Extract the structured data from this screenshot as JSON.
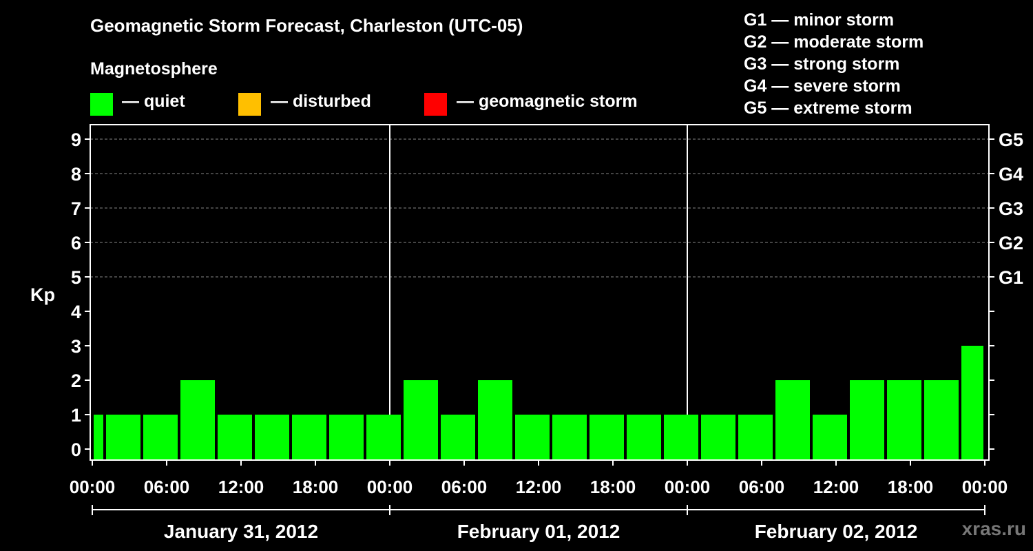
{
  "title": "Geomagnetic Storm Forecast, Charleston (UTC-05)",
  "legend": {
    "heading": "Magnetosphere",
    "items": [
      {
        "label": "— quiet",
        "color": "#00ff00"
      },
      {
        "label": "— disturbed",
        "color": "#ffbf00"
      },
      {
        "label": "— geomagnetic storm",
        "color": "#ff0000"
      }
    ]
  },
  "g_scale": [
    "G1 — minor storm",
    "G2 — moderate storm",
    "G3 — strong storm",
    "G4 — severe storm",
    "G5 — extreme storm"
  ],
  "credit": "xras.ru",
  "chart_data": {
    "type": "bar",
    "ylabel": "Kp",
    "ylim": [
      0,
      9
    ],
    "yticks": [
      0,
      1,
      2,
      3,
      4,
      5,
      6,
      7,
      8,
      9
    ],
    "right_axis_labels": [
      {
        "kp": 5,
        "label": "G1"
      },
      {
        "kp": 6,
        "label": "G2"
      },
      {
        "kp": 7,
        "label": "G3"
      },
      {
        "kp": 8,
        "label": "G4"
      },
      {
        "kp": 9,
        "label": "G5"
      }
    ],
    "grid": "dashed horizontal at Kp 5–9",
    "xlim_hours": [
      0,
      72
    ],
    "xticks": [
      {
        "hour": 0,
        "label": "00:00"
      },
      {
        "hour": 6,
        "label": "06:00"
      },
      {
        "hour": 12,
        "label": "12:00"
      },
      {
        "hour": 18,
        "label": "18:00"
      },
      {
        "hour": 24,
        "label": "00:00"
      },
      {
        "hour": 30,
        "label": "06:00"
      },
      {
        "hour": 36,
        "label": "12:00"
      },
      {
        "hour": 42,
        "label": "18:00"
      },
      {
        "hour": 48,
        "label": "00:00"
      },
      {
        "hour": 54,
        "label": "06:00"
      },
      {
        "hour": 60,
        "label": "12:00"
      },
      {
        "hour": 66,
        "label": "18:00"
      },
      {
        "hour": 72,
        "label": "00:00"
      }
    ],
    "days": [
      {
        "label": "January 31, 2012",
        "start": 0,
        "end": 24
      },
      {
        "label": "February 01, 2012",
        "start": 24,
        "end": 48
      },
      {
        "label": "February 02, 2012",
        "start": 48,
        "end": 72
      }
    ],
    "bar_color": "#00ff00",
    "bars": [
      {
        "start": 0,
        "end": 1,
        "kp": 1
      },
      {
        "start": 1,
        "end": 4,
        "kp": 1
      },
      {
        "start": 4,
        "end": 7,
        "kp": 1
      },
      {
        "start": 7,
        "end": 10,
        "kp": 2
      },
      {
        "start": 10,
        "end": 13,
        "kp": 1
      },
      {
        "start": 13,
        "end": 16,
        "kp": 1
      },
      {
        "start": 16,
        "end": 19,
        "kp": 1
      },
      {
        "start": 19,
        "end": 22,
        "kp": 1
      },
      {
        "start": 22,
        "end": 25,
        "kp": 1
      },
      {
        "start": 25,
        "end": 28,
        "kp": 2
      },
      {
        "start": 28,
        "end": 31,
        "kp": 1
      },
      {
        "start": 31,
        "end": 34,
        "kp": 2
      },
      {
        "start": 34,
        "end": 37,
        "kp": 1
      },
      {
        "start": 37,
        "end": 40,
        "kp": 1
      },
      {
        "start": 40,
        "end": 43,
        "kp": 1
      },
      {
        "start": 43,
        "end": 46,
        "kp": 1
      },
      {
        "start": 46,
        "end": 49,
        "kp": 1
      },
      {
        "start": 49,
        "end": 52,
        "kp": 1
      },
      {
        "start": 52,
        "end": 55,
        "kp": 1
      },
      {
        "start": 55,
        "end": 58,
        "kp": 2
      },
      {
        "start": 58,
        "end": 61,
        "kp": 1
      },
      {
        "start": 61,
        "end": 64,
        "kp": 2
      },
      {
        "start": 64,
        "end": 67,
        "kp": 2
      },
      {
        "start": 67,
        "end": 70,
        "kp": 2
      },
      {
        "start": 70,
        "end": 72,
        "kp": 3
      }
    ]
  }
}
